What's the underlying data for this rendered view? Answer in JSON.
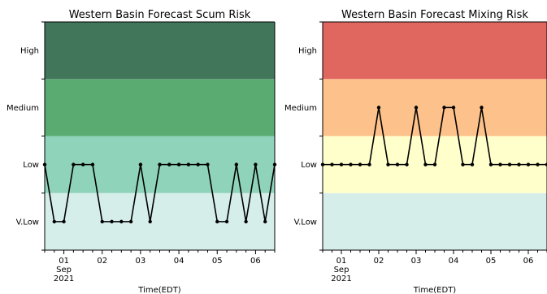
{
  "chart_data": [
    {
      "type": "line",
      "title": "Western Basin Forecast Scum Risk",
      "xlabel": "Time(EDT)",
      "ylabel": "",
      "y_categories": [
        "V.Low",
        "Low",
        "Medium",
        "High"
      ],
      "x_tick_labels": [
        {
          "day": 1,
          "lines": [
            "01",
            "Sep",
            "2021"
          ]
        },
        {
          "day": 2,
          "lines": [
            "02"
          ]
        },
        {
          "day": 3,
          "lines": [
            "03"
          ]
        },
        {
          "day": 4,
          "lines": [
            "04"
          ]
        },
        {
          "day": 5,
          "lines": [
            "05"
          ]
        },
        {
          "day": 6,
          "lines": [
            "06"
          ]
        }
      ],
      "xlim": [
        "2021-08-31 12:00",
        "2021-09-06 12:00"
      ],
      "band_colors": [
        "#d6eeea",
        "#8fd3bb",
        "#5aab72",
        "#41765a"
      ],
      "series": [
        {
          "x": [
            "08-31 12:00",
            "08-31 18:00",
            "09-01 00:00",
            "09-01 06:00",
            "09-01 12:00",
            "09-01 18:00",
            "09-02 00:00",
            "09-02 06:00",
            "09-02 12:00",
            "09-02 18:00",
            "09-03 00:00",
            "09-03 06:00",
            "09-03 12:00",
            "09-03 18:00",
            "09-04 00:00",
            "09-04 06:00",
            "09-04 12:00",
            "09-04 18:00",
            "09-05 00:00",
            "09-05 06:00",
            "09-05 12:00",
            "09-05 18:00",
            "09-06 00:00",
            "09-06 06:00",
            "09-06 12:00"
          ],
          "values": [
            "Low",
            "V.Low",
            "V.Low",
            "Low",
            "Low",
            "Low",
            "V.Low",
            "V.Low",
            "V.Low",
            "V.Low",
            "Low",
            "V.Low",
            "Low",
            "Low",
            "Low",
            "Low",
            "Low",
            "Low",
            "V.Low",
            "V.Low",
            "Low",
            "V.Low",
            "Low",
            "V.Low",
            "Low"
          ],
          "color": "#000000"
        }
      ]
    },
    {
      "type": "line",
      "title": "Western Basin Forecast Mixing Risk",
      "xlabel": "Time(EDT)",
      "ylabel": "",
      "y_categories": [
        "V.Low",
        "Low",
        "Medium",
        "High"
      ],
      "x_tick_labels": [
        {
          "day": 1,
          "lines": [
            "01",
            "Sep",
            "2021"
          ]
        },
        {
          "day": 2,
          "lines": [
            "02"
          ]
        },
        {
          "day": 3,
          "lines": [
            "03"
          ]
        },
        {
          "day": 4,
          "lines": [
            "04"
          ]
        },
        {
          "day": 5,
          "lines": [
            "05"
          ]
        },
        {
          "day": 6,
          "lines": [
            "06"
          ]
        }
      ],
      "xlim": [
        "2021-08-31 12:00",
        "2021-09-06 12:00"
      ],
      "band_colors": [
        "#d6eeea",
        "#ffffcc",
        "#fdc18b",
        "#e06760"
      ],
      "series": [
        {
          "x": [
            "08-31 12:00",
            "08-31 18:00",
            "09-01 00:00",
            "09-01 06:00",
            "09-01 12:00",
            "09-01 18:00",
            "09-02 00:00",
            "09-02 06:00",
            "09-02 12:00",
            "09-02 18:00",
            "09-03 00:00",
            "09-03 06:00",
            "09-03 12:00",
            "09-03 18:00",
            "09-04 00:00",
            "09-04 06:00",
            "09-04 12:00",
            "09-04 18:00",
            "09-05 00:00",
            "09-05 06:00",
            "09-05 12:00",
            "09-05 18:00",
            "09-06 00:00",
            "09-06 06:00",
            "09-06 12:00"
          ],
          "values": [
            "Low",
            "Low",
            "Low",
            "Low",
            "Low",
            "Low",
            "Medium",
            "Low",
            "Low",
            "Low",
            "Medium",
            "Low",
            "Low",
            "Medium",
            "Medium",
            "Low",
            "Low",
            "Medium",
            "Low",
            "Low",
            "Low",
            "Low",
            "Low",
            "Low",
            "Low"
          ],
          "color": "#000000"
        }
      ]
    }
  ]
}
